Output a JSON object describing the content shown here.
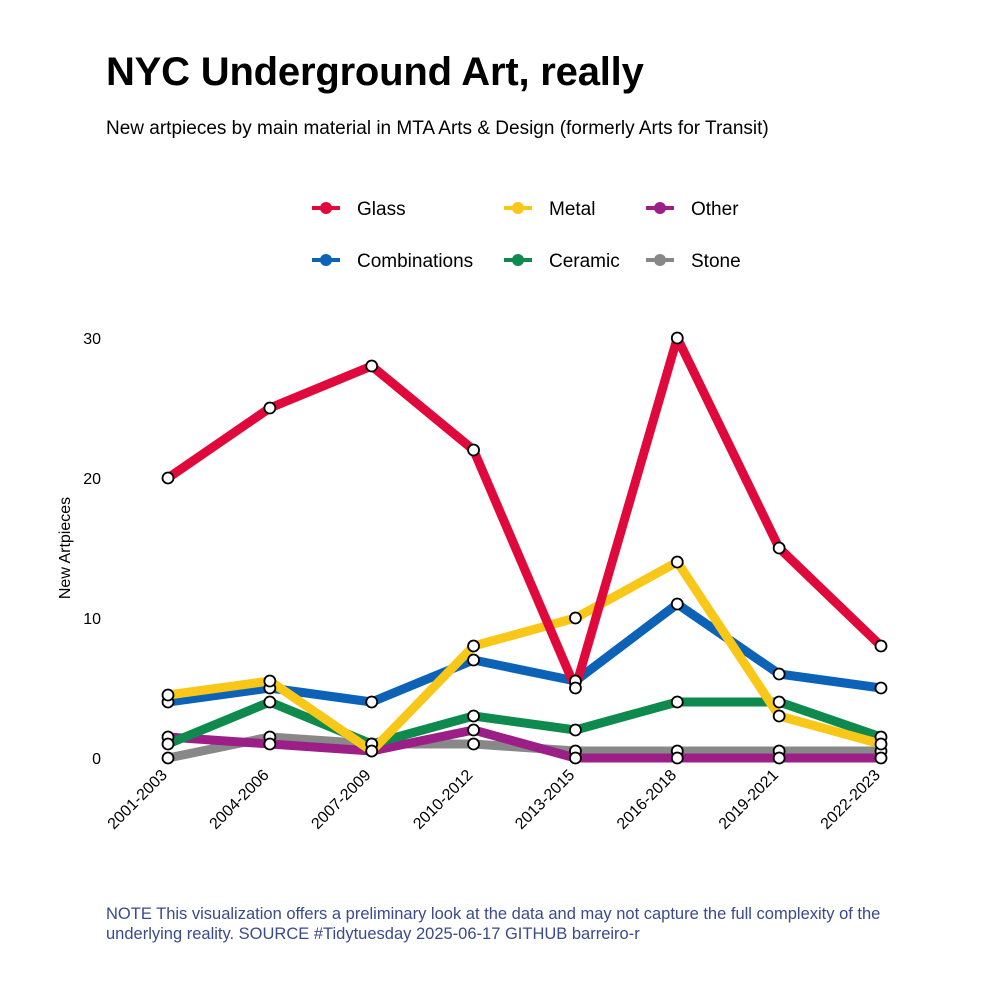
{
  "header": {
    "title": "NYC Underground Art, really",
    "subtitle": "New artpieces by main material in MTA Arts & Design (formerly Arts for Transit)"
  },
  "footer": {
    "note": "NOTE This visualization offers a preliminary look at the data and may not capture the full complexity of the underlying reality. SOURCE #Tidytuesday 2025-06-17 GITHUB barreiro-r"
  },
  "chart_data": {
    "type": "line",
    "title": "NYC Underground Art, really",
    "subtitle": "New artpieces by main material in MTA Arts & Design (formerly Arts for Transit)",
    "xlabel": "",
    "ylabel": "New Artpieces",
    "categories": [
      "2001-2003",
      "2004-2006",
      "2007-2009",
      "2010-2012",
      "2013-2015",
      "2016-2018",
      "2019-2021",
      "2022-2023"
    ],
    "ylim": [
      0,
      30
    ],
    "yticks": [
      0,
      10,
      20,
      30
    ],
    "grid": false,
    "legend_position": "top",
    "series": [
      {
        "name": "Stone",
        "color": "#888888",
        "values": [
          0,
          1.5,
          1,
          1,
          0.5,
          0.5,
          0.5,
          0.5
        ]
      },
      {
        "name": "Other",
        "color": "#9b1f86",
        "values": [
          1.5,
          1,
          0.5,
          2,
          0,
          0,
          0,
          0
        ]
      },
      {
        "name": "Ceramic",
        "color": "#0e8a4f",
        "values": [
          1,
          4,
          1,
          3,
          2,
          4,
          4,
          1.5
        ]
      },
      {
        "name": "Combinations",
        "color": "#0b62b6",
        "values": [
          4,
          5,
          4,
          7,
          5.5,
          11,
          6,
          5
        ]
      },
      {
        "name": "Metal",
        "color": "#f8c717",
        "values": [
          4.5,
          5.5,
          0.5,
          8,
          10,
          14,
          3,
          1
        ]
      },
      {
        "name": "Glass",
        "color": "#e0093b",
        "values": [
          20,
          25,
          28,
          22,
          5,
          30,
          15,
          8
        ]
      }
    ],
    "legend": [
      "Glass",
      "Metal",
      "Other",
      "Combinations",
      "Ceramic",
      "Stone"
    ]
  }
}
